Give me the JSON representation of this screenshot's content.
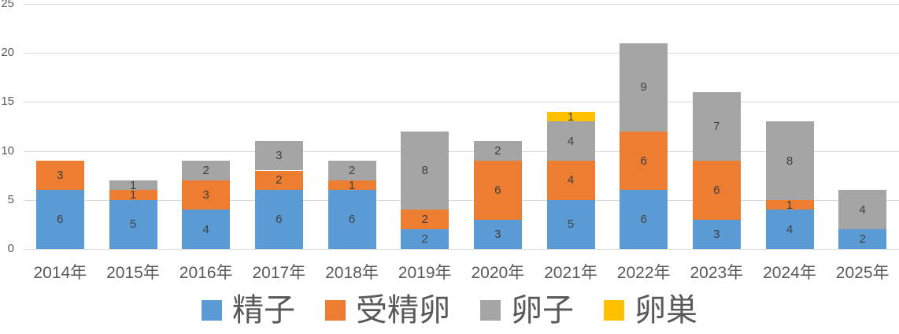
{
  "chart_data": {
    "type": "bar",
    "stacked": true,
    "title": "",
    "xlabel": "",
    "ylabel": "",
    "categories": [
      "2014年",
      "2015年",
      "2016年",
      "2017年",
      "2018年",
      "2019年",
      "2020年",
      "2021年",
      "2022年",
      "2023年",
      "2024年",
      "2025年"
    ],
    "series": [
      {
        "name": "精子",
        "color": "#5B9BD5",
        "values": [
          6,
          5,
          4,
          6,
          6,
          2,
          3,
          5,
          6,
          3,
          4,
          2
        ]
      },
      {
        "name": "受精卵",
        "color": "#ED7D31",
        "values": [
          3,
          1,
          3,
          2,
          1,
          2,
          6,
          4,
          6,
          6,
          1,
          0
        ]
      },
      {
        "name": "卵子",
        "color": "#A5A5A5",
        "values": [
          0,
          1,
          2,
          3,
          2,
          8,
          2,
          4,
          9,
          7,
          8,
          4
        ]
      },
      {
        "name": "卵巣",
        "color": "#FFC000",
        "values": [
          0,
          0,
          0,
          0,
          0,
          0,
          0,
          1,
          0,
          0,
          0,
          0
        ]
      }
    ],
    "totals": [
      9,
      7,
      9,
      11,
      9,
      12,
      11,
      14,
      21,
      16,
      13,
      6
    ],
    "ylim": [
      0,
      25
    ],
    "yticks": [
      0,
      5,
      10,
      15,
      20,
      25
    ],
    "grid": true,
    "legend_position": "bottom",
    "data_labels": true
  },
  "style_colors": {
    "gridline": "#D9D9D9",
    "axis_text": "#595959",
    "data_label_text": "#404040",
    "legend_text": "#595959",
    "background": "#FFFFFF"
  }
}
